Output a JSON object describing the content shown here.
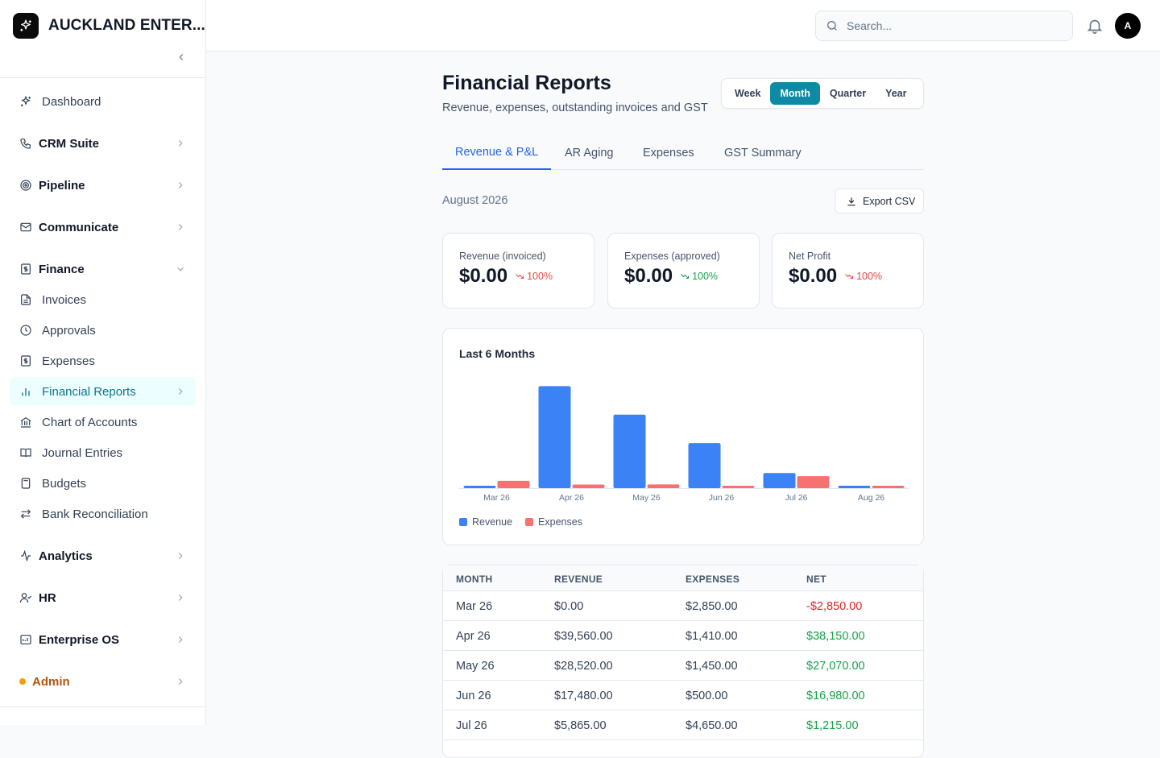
{
  "brand": {
    "name": "AUCKLAND ENTER..."
  },
  "sidebar": {
    "items": [
      {
        "label": "Dashboard"
      },
      {
        "label": "CRM Suite"
      },
      {
        "label": "Pipeline"
      },
      {
        "label": "Communicate"
      },
      {
        "label": "Finance"
      },
      {
        "label": "Invoices"
      },
      {
        "label": "Approvals"
      },
      {
        "label": "Expenses"
      },
      {
        "label": "Financial Reports"
      },
      {
        "label": "Chart of Accounts"
      },
      {
        "label": "Journal Entries"
      },
      {
        "label": "Budgets"
      },
      {
        "label": "Bank Reconciliation"
      },
      {
        "label": "Analytics"
      },
      {
        "label": "HR"
      },
      {
        "label": "Enterprise OS"
      },
      {
        "label": "Admin"
      }
    ]
  },
  "topbar": {
    "search_placeholder": "Search...",
    "avatar_initial": "A"
  },
  "page": {
    "title": "Financial Reports",
    "subtitle": "Revenue, expenses, outstanding invoices and GST",
    "periods": [
      "Week",
      "Month",
      "Quarter",
      "Year"
    ],
    "active_period": "Month",
    "tabs": [
      "Revenue & P&L",
      "AR Aging",
      "Expenses",
      "GST Summary"
    ],
    "active_tab": "Revenue & P&L",
    "range_label": "August 2026",
    "export_label": "Export CSV"
  },
  "kpis": [
    {
      "label": "Revenue (invoiced)",
      "value": "$0.00",
      "delta": "100%",
      "trend": "down",
      "color": "#ef4444"
    },
    {
      "label": "Expenses (approved)",
      "value": "$0.00",
      "delta": "100%",
      "trend": "down",
      "color": "#16a34a"
    },
    {
      "label": "Net Profit",
      "value": "$0.00",
      "delta": "100%",
      "trend": "down",
      "color": "#ef4444"
    }
  ],
  "chart_data": {
    "type": "bar",
    "title": "Last 6 Months",
    "categories": [
      "Mar 26",
      "Apr 26",
      "May 26",
      "Jun 26",
      "Jul 26",
      "Aug 26"
    ],
    "series": [
      {
        "name": "Revenue",
        "color": "#3b82f6",
        "values": [
          0,
          39560,
          28520,
          17480,
          5865,
          0
        ]
      },
      {
        "name": "Expenses",
        "color": "#f87171",
        "values": [
          2850,
          1410,
          1450,
          500,
          4650,
          0
        ]
      }
    ],
    "ylim": [
      0,
      40000
    ],
    "grid": false,
    "legend_position": "bottom-left"
  },
  "table": {
    "headers": [
      "MONTH",
      "REVENUE",
      "EXPENSES",
      "NET"
    ],
    "rows": [
      {
        "month": "Mar 26",
        "revenue": "$0.00",
        "expenses": "$2,850.00",
        "net": "-$2,850.00",
        "sign": "neg"
      },
      {
        "month": "Apr 26",
        "revenue": "$39,560.00",
        "expenses": "$1,410.00",
        "net": "$38,150.00",
        "sign": "pos"
      },
      {
        "month": "May 26",
        "revenue": "$28,520.00",
        "expenses": "$1,450.00",
        "net": "$27,070.00",
        "sign": "pos"
      },
      {
        "month": "Jun 26",
        "revenue": "$17,480.00",
        "expenses": "$500.00",
        "net": "$16,980.00",
        "sign": "pos"
      },
      {
        "month": "Jul 26",
        "revenue": "$5,865.00",
        "expenses": "$4,650.00",
        "net": "$1,215.00",
        "sign": "pos"
      }
    ]
  }
}
